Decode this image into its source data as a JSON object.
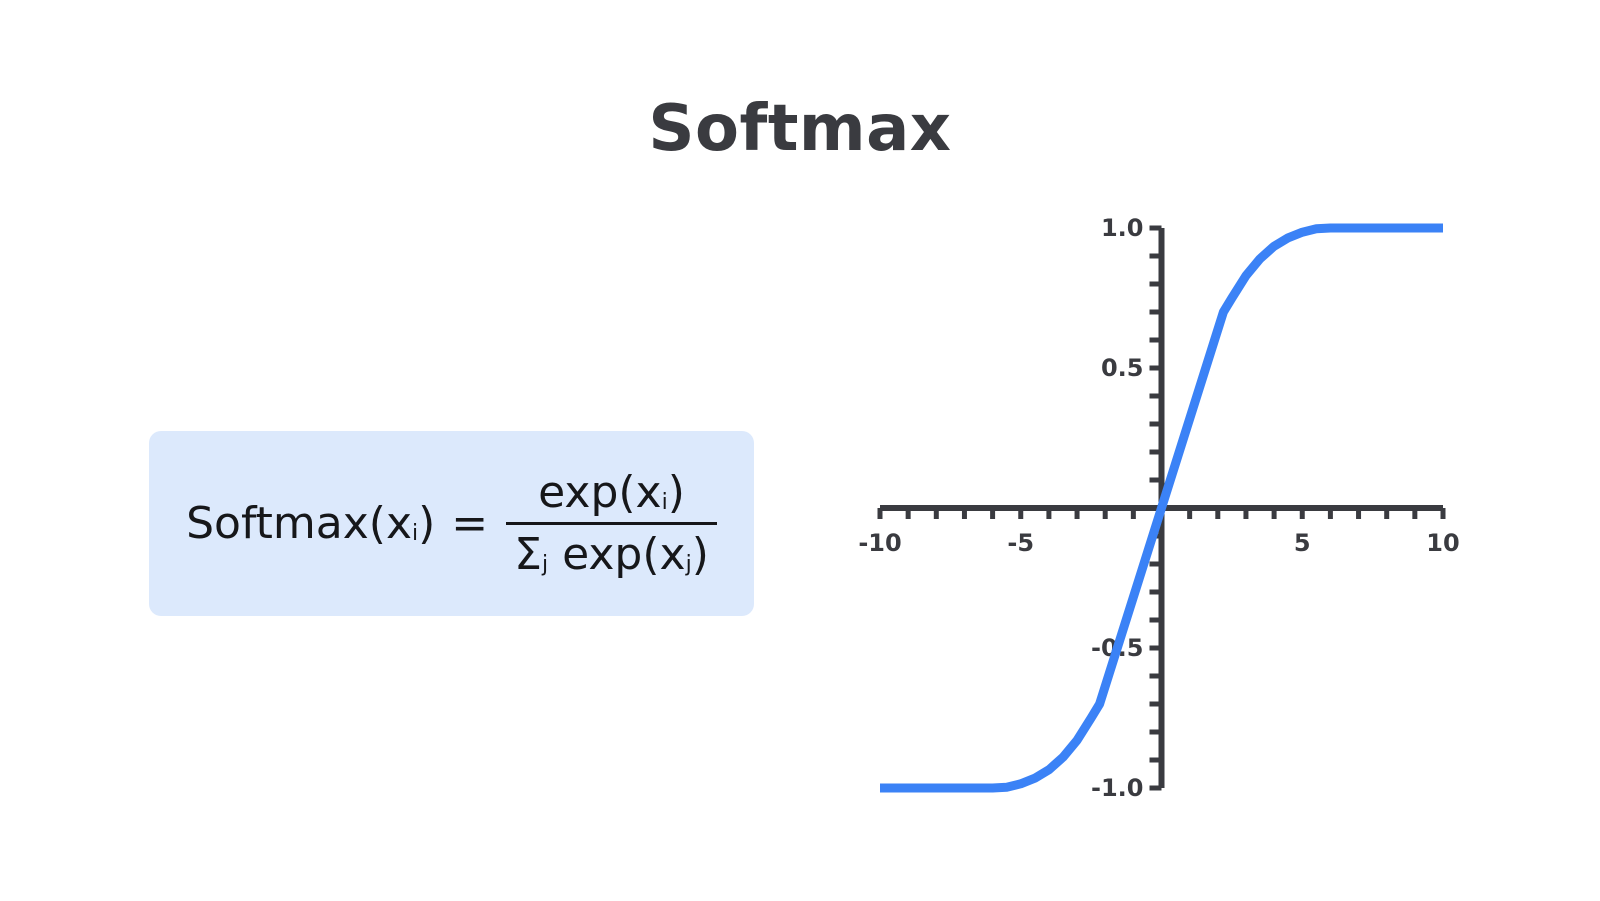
{
  "title": "Softmax",
  "formula": {
    "lhs_name": "Softmax(x",
    "lhs_sub": "i",
    "lhs_close": ")",
    "equals": "=",
    "numerator_main": "exp(x",
    "numerator_sub": "i",
    "numerator_close": ")",
    "denominator_sigma": "Σ",
    "denominator_sigma_sub": "j",
    "denominator_main": " exp(x",
    "denominator_sub": "j",
    "denominator_close": ")"
  },
  "colors": {
    "curve": "#3b82f6",
    "axis": "#3a3b40",
    "formula_bg": "#dce9fc",
    "title": "#3a3b40"
  },
  "chart_data": {
    "type": "line",
    "xlim": [
      -10,
      10
    ],
    "ylim": [
      -1.0,
      1.0
    ],
    "x_ticks": [
      -10,
      -5,
      5,
      10
    ],
    "x_tick_labels": [
      "-10",
      "-5",
      "5",
      "10"
    ],
    "y_ticks": [
      1.0,
      0.5,
      -0.5,
      -1.0
    ],
    "y_tick_labels": [
      "1.0",
      "0.5",
      "-0.5",
      "-1.0"
    ],
    "x_minor_step": 1,
    "y_minor_step": 0.1,
    "grid": false,
    "series": [
      {
        "x": [
          -10,
          -6.0,
          -5.5,
          -5.0,
          -4.5,
          -4.0,
          -3.5,
          -3.0,
          -2.5,
          -2.2,
          0,
          2.2,
          2.5,
          3.0,
          3.5,
          4.0,
          4.5,
          5.0,
          5.5,
          6.0,
          10
        ],
        "y": [
          -1.0,
          -1.0,
          -0.997,
          -0.985,
          -0.965,
          -0.935,
          -0.89,
          -0.83,
          -0.75,
          -0.7,
          0.0,
          0.7,
          0.75,
          0.83,
          0.89,
          0.935,
          0.965,
          0.985,
          0.997,
          1.0,
          1.0
        ]
      }
    ]
  }
}
